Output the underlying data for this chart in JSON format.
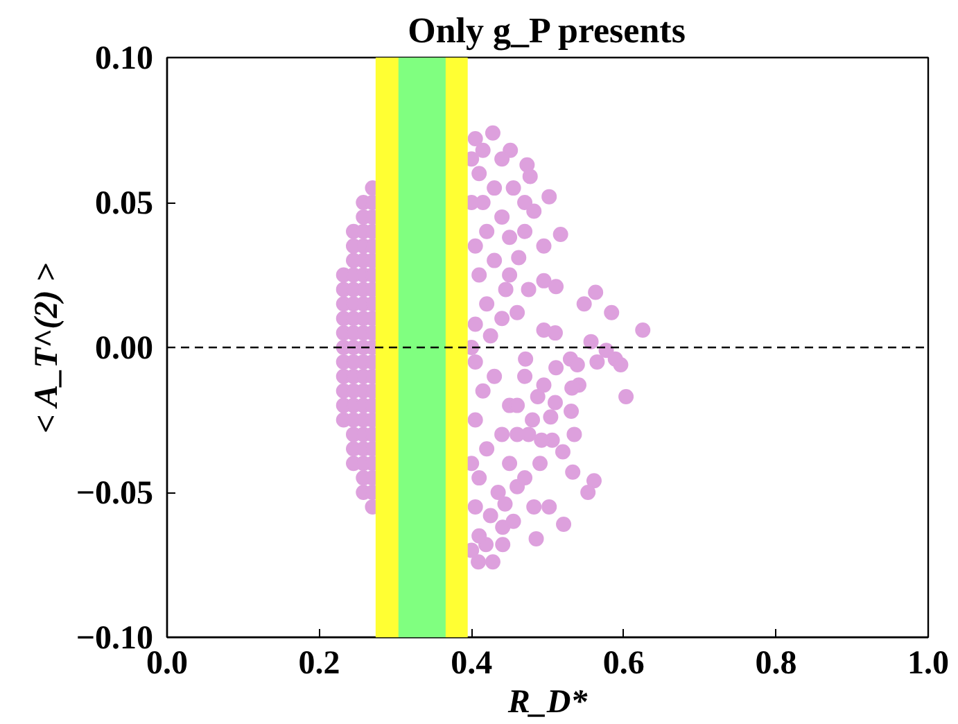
{
  "chart_data": {
    "type": "scatter",
    "title": "Only g_P presents",
    "xlabel": "R_D*",
    "ylabel": "< A_T^(2) >",
    "xlim": [
      0,
      1
    ],
    "ylim": [
      -0.1,
      0.1
    ],
    "xticks": [
      {
        "value": 0,
        "label": "0.0"
      },
      {
        "value": 0.2,
        "label": "0.2"
      },
      {
        "value": 0.4,
        "label": "0.4"
      },
      {
        "value": 0.6,
        "label": "0.6"
      },
      {
        "value": 0.8,
        "label": "0.8"
      },
      {
        "value": 1,
        "label": "1.0"
      }
    ],
    "yticks": [
      {
        "value": -0.1,
        "label": "−0.10"
      },
      {
        "value": -0.05,
        "label": "−0.05"
      },
      {
        "value": 0,
        "label": "0.00"
      },
      {
        "value": 0.05,
        "label": "0.05"
      },
      {
        "value": 0.1,
        "label": "0.10"
      }
    ],
    "grid": false,
    "marker": "circle",
    "bands": [
      {
        "axis": "x",
        "from": 0.274,
        "to": 0.395,
        "color": "#ffff33"
      },
      {
        "axis": "x",
        "from": 0.304,
        "to": 0.366,
        "color": "#80ff80"
      }
    ],
    "ref_lines": [
      {
        "axis": "y",
        "value": 0,
        "color": "#000000",
        "line_style": "dashed"
      }
    ],
    "series": [
      {
        "color": "#dda0dd",
        "x": [
          0.232,
          0.232,
          0.232,
          0.232,
          0.232,
          0.232,
          0.232,
          0.232,
          0.232,
          0.232,
          0.232,
          0.245,
          0.245,
          0.245,
          0.245,
          0.245,
          0.245,
          0.245,
          0.245,
          0.245,
          0.245,
          0.245,
          0.245,
          0.245,
          0.245,
          0.245,
          0.245,
          0.245,
          0.258,
          0.258,
          0.258,
          0.258,
          0.258,
          0.258,
          0.258,
          0.258,
          0.258,
          0.258,
          0.258,
          0.258,
          0.258,
          0.258,
          0.258,
          0.258,
          0.258,
          0.258,
          0.258,
          0.258,
          0.258,
          0.27,
          0.27,
          0.27,
          0.27,
          0.27,
          0.27,
          0.27,
          0.27,
          0.27,
          0.27,
          0.27,
          0.27,
          0.27,
          0.27,
          0.27,
          0.27,
          0.27,
          0.27,
          0.27,
          0.27,
          0.27,
          0.27,
          0.27,
          0.428,
          0.451,
          0.473,
          0.477,
          0.502,
          0.47,
          0.482,
          0.517,
          0.495,
          0.462,
          0.495,
          0.511,
          0.563,
          0.548,
          0.584,
          0.625,
          0.557,
          0.51,
          0.495,
          0.577,
          0.589,
          0.596,
          0.565,
          0.53,
          0.511,
          0.539,
          0.471,
          0.541,
          0.532,
          0.603,
          0.495,
          0.51,
          0.487,
          0.531,
          0.504,
          0.535,
          0.475,
          0.46,
          0.506,
          0.492,
          0.52,
          0.49,
          0.533,
          0.561,
          0.553,
          0.46,
          0.482,
          0.502,
          0.444,
          0.521,
          0.485,
          0.441,
          0.441,
          0.428,
          0.409,
          0.419,
          0.405,
          0.415,
          0.41,
          0.43,
          0.415,
          0.44,
          0.42,
          0.45,
          0.405,
          0.43,
          0.41,
          0.445,
          0.42,
          0.44,
          0.405,
          0.425,
          0.46,
          0.45,
          0.475,
          0.47,
          0.455,
          0.44,
          0.405,
          0.43,
          0.415,
          0.45,
          0.405,
          0.44,
          0.42,
          0.45,
          0.41,
          0.435,
          0.405,
          0.425,
          0.41,
          0.47,
          0.46,
          0.48,
          0.47,
          0.455,
          0.4,
          0.4,
          0.4,
          0.4,
          0.4
        ],
        "values": [
          -0.025,
          -0.02,
          -0.015,
          -0.01,
          -0.005,
          0,
          0.005,
          0.01,
          0.015,
          0.02,
          0.025,
          -0.04,
          -0.035,
          -0.03,
          -0.025,
          -0.02,
          -0.015,
          -0.01,
          -0.005,
          0,
          0.005,
          0.01,
          0.015,
          0.02,
          0.025,
          0.03,
          0.035,
          0.04,
          -0.05,
          -0.045,
          -0.04,
          -0.035,
          -0.03,
          -0.025,
          -0.02,
          -0.015,
          -0.01,
          -0.005,
          0,
          0.005,
          0.01,
          0.015,
          0.02,
          0.025,
          0.03,
          0.035,
          0.04,
          0.045,
          0.05,
          -0.055,
          -0.05,
          -0.045,
          -0.04,
          -0.035,
          -0.03,
          -0.025,
          -0.02,
          -0.015,
          -0.01,
          -0.005,
          0,
          0.005,
          0.01,
          0.015,
          0.02,
          0.025,
          0.03,
          0.035,
          0.04,
          0.045,
          0.05,
          0.055,
          0.074,
          0.068,
          0.063,
          0.059,
          0.052,
          0.05,
          0.047,
          0.039,
          0.035,
          0.031,
          0.023,
          0.021,
          0.019,
          0.015,
          0.012,
          0.006,
          0.002,
          0.005,
          0.006,
          -0.001,
          -0.004,
          -0.006,
          -0.005,
          -0.004,
          -0.007,
          -0.006,
          -0.004,
          -0.013,
          -0.014,
          -0.017,
          -0.013,
          -0.019,
          -0.017,
          -0.022,
          -0.024,
          -0.03,
          -0.03,
          -0.03,
          -0.032,
          -0.032,
          -0.036,
          -0.04,
          -0.043,
          -0.046,
          -0.05,
          -0.048,
          -0.055,
          -0.055,
          -0.054,
          -0.061,
          -0.066,
          -0.062,
          -0.068,
          -0.074,
          -0.074,
          -0.068,
          0.072,
          0.068,
          0.06,
          0.055,
          0.05,
          0.045,
          0.04,
          0.038,
          0.035,
          0.03,
          0.025,
          0.02,
          0.015,
          0.01,
          0.008,
          0.004,
          0.012,
          0.025,
          0.02,
          0.04,
          0.055,
          0.065,
          -0.005,
          -0.01,
          -0.015,
          -0.02,
          -0.025,
          -0.03,
          -0.035,
          -0.04,
          -0.045,
          -0.05,
          -0.055,
          -0.058,
          -0.065,
          -0.01,
          -0.02,
          -0.025,
          -0.045,
          -0.06,
          0,
          0.05,
          -0.04,
          -0.07,
          0.065
        ]
      }
    ]
  }
}
